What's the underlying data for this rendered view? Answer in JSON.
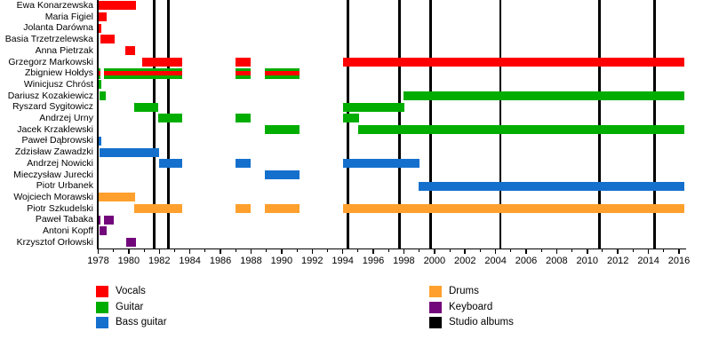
{
  "chart_data": {
    "type": "gantt_timeline",
    "title": "",
    "xlabel": "",
    "ylabel": "",
    "x_axis": {
      "min": 1978,
      "max": 2016.35,
      "major_tick_step": 2,
      "minor_tick_step": 1,
      "tick_labels": [
        "1978",
        "1980",
        "1982",
        "1984",
        "1986",
        "1988",
        "1990",
        "1992",
        "1994",
        "1996",
        "1998",
        "2000",
        "2002",
        "2004",
        "2006",
        "2008",
        "2010",
        "2012",
        "2014",
        "2016"
      ]
    },
    "role_colors": {
      "vocals": "#ff0000",
      "guitar": "#00ad00",
      "bass": "#1570cd",
      "drums": "#ffa02e",
      "keyboard": "#72077b",
      "album": "#000000"
    },
    "members": [
      {
        "name": "Ewa Konarzewska",
        "role": "vocals",
        "segments": [
          [
            1978.0,
            1980.45
          ]
        ]
      },
      {
        "name": "Maria Figiel",
        "role": "vocals",
        "segments": [
          [
            1978.0,
            1978.55
          ]
        ]
      },
      {
        "name": "Jolanta Darówna",
        "role": "vocals",
        "segments": [
          [
            1978.0,
            1978.2
          ]
        ]
      },
      {
        "name": "Basia Trzetrzelewska",
        "role": "vocals",
        "segments": [
          [
            1978.15,
            1979.05
          ]
        ]
      },
      {
        "name": "Anna Pietrzak",
        "role": "vocals",
        "segments": [
          [
            1979.8,
            1980.4
          ]
        ]
      },
      {
        "name": "Grzegorz Markowski",
        "role": "vocals",
        "segments": [
          [
            1980.9,
            1983.5
          ],
          [
            1987.0,
            1988.0
          ],
          [
            1994.0,
            2016.35
          ]
        ]
      },
      {
        "name": "Zbigniew Hołdys",
        "role": "vocals_guitar",
        "segments": [
          [
            1978.0,
            1978.15
          ],
          [
            1978.4,
            1983.5
          ],
          [
            1987.0,
            1988.0
          ],
          [
            1988.9,
            1991.15
          ]
        ]
      },
      {
        "name": "Winicjusz Chróst",
        "role": "guitar",
        "segments": [
          [
            1978.0,
            1978.2
          ]
        ]
      },
      {
        "name": "Dariusz Kozakiewicz",
        "role": "guitar",
        "segments": [
          [
            1978.1,
            1978.5
          ],
          [
            1998.0,
            2016.35
          ]
        ]
      },
      {
        "name": "Ryszard Sygitowicz",
        "role": "guitar",
        "segments": [
          [
            1980.35,
            1981.95
          ],
          [
            1994.0,
            1998.05
          ]
        ]
      },
      {
        "name": "Andrzej Urny",
        "role": "guitar",
        "segments": [
          [
            1981.95,
            1983.5
          ],
          [
            1987.0,
            1988.0
          ],
          [
            1994.0,
            1995.05
          ]
        ]
      },
      {
        "name": "Jacek Krzaklewski",
        "role": "guitar",
        "segments": [
          [
            1988.9,
            1991.15
          ],
          [
            1995.0,
            2016.35
          ]
        ]
      },
      {
        "name": "Paweł Dąbrowski",
        "role": "bass",
        "segments": [
          [
            1978.0,
            1978.2
          ]
        ]
      },
      {
        "name": "Zdzisław Zawadzki",
        "role": "bass",
        "segments": [
          [
            1978.1,
            1982.0
          ]
        ]
      },
      {
        "name": "Andrzej Nowicki",
        "role": "bass",
        "segments": [
          [
            1982.0,
            1983.5
          ],
          [
            1987.0,
            1988.0
          ],
          [
            1994.0,
            1999.05
          ]
        ]
      },
      {
        "name": "Mieczysław Jurecki",
        "role": "bass",
        "segments": [
          [
            1988.9,
            1991.15
          ]
        ]
      },
      {
        "name": "Piotr Urbanek",
        "role": "bass",
        "segments": [
          [
            1998.95,
            2016.35
          ]
        ]
      },
      {
        "name": "Wojciech Morawski",
        "role": "drums",
        "segments": [
          [
            1978.0,
            1980.4
          ]
        ]
      },
      {
        "name": "Piotr Szkudelski",
        "role": "drums",
        "segments": [
          [
            1980.35,
            1983.5
          ],
          [
            1987.0,
            1988.0
          ],
          [
            1988.9,
            1991.15
          ],
          [
            1994.0,
            2016.35
          ]
        ]
      },
      {
        "name": "Paweł Tabaka",
        "role": "keyboard",
        "segments": [
          [
            1978.0,
            1978.15
          ],
          [
            1978.4,
            1979.0
          ]
        ]
      },
      {
        "name": "Antoni Kopff",
        "role": "keyboard",
        "segments": [
          [
            1978.1,
            1978.55
          ]
        ]
      },
      {
        "name": "Krzysztof Orłowski",
        "role": "keyboard",
        "segments": [
          [
            1979.85,
            1980.45
          ]
        ]
      }
    ],
    "studio_album_lines": [
      1981.65,
      1982.6,
      1994.35,
      1997.7,
      1999.75,
      2004.3,
      2010.8,
      2014.4
    ],
    "legend": {
      "columns": [
        [
          {
            "label": "Vocals",
            "role": "vocals"
          },
          {
            "label": "Guitar",
            "role": "guitar"
          },
          {
            "label": "Bass guitar",
            "role": "bass"
          }
        ],
        [
          {
            "label": "Drums",
            "role": "drums"
          },
          {
            "label": "Keyboard",
            "role": "keyboard"
          },
          {
            "label": "Studio albums",
            "role": "album"
          }
        ]
      ],
      "legend_position": "bottom"
    },
    "grid": false
  }
}
